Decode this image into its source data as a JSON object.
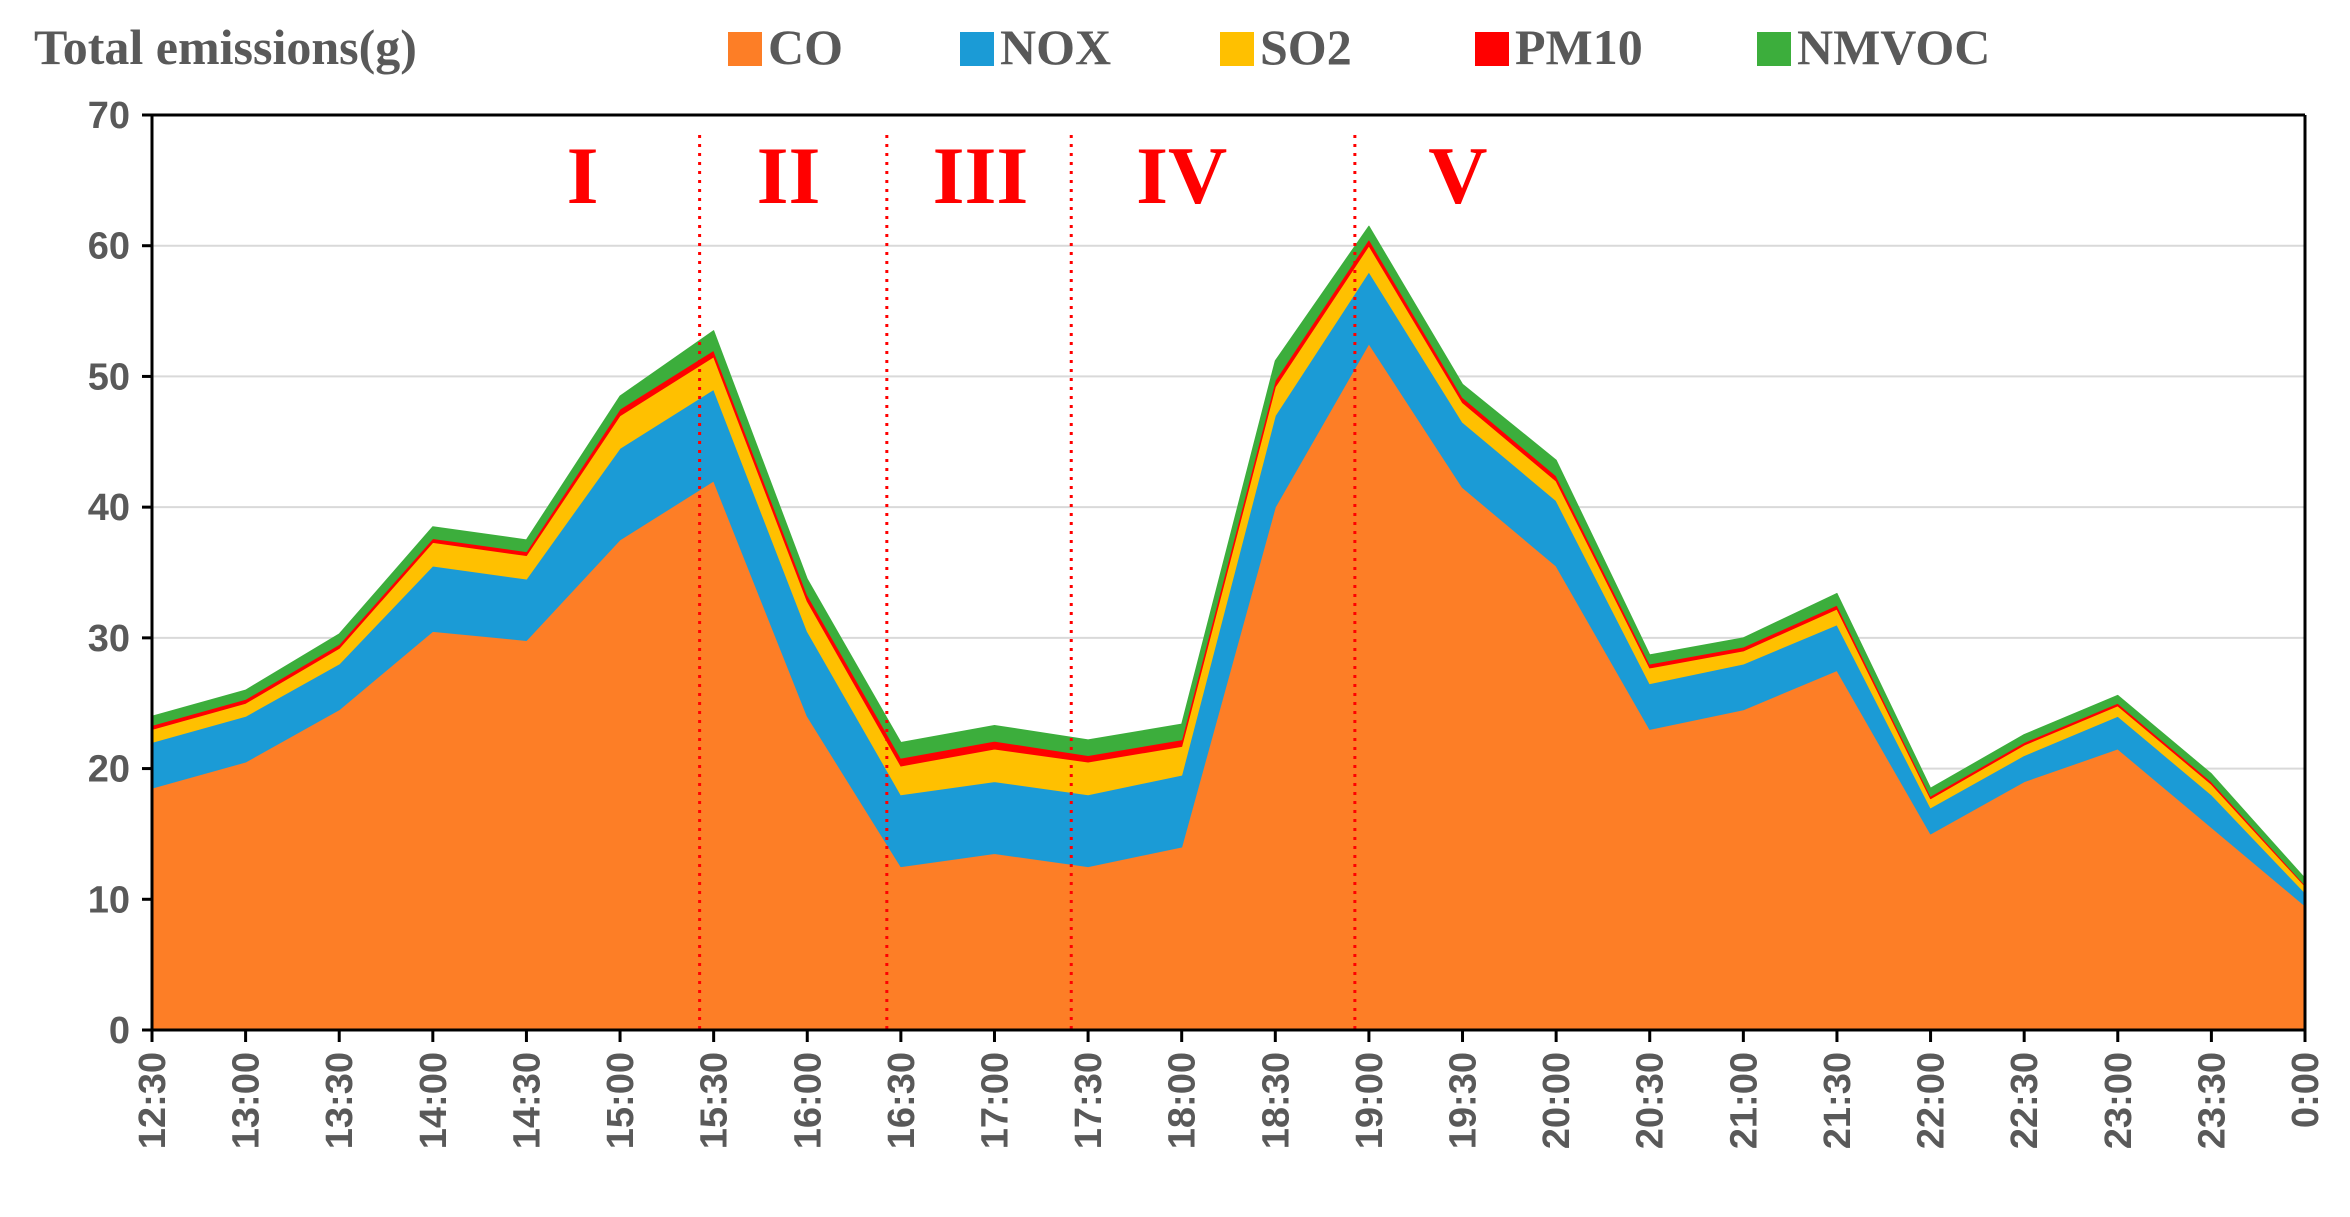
{
  "chart_data": {
    "type": "area",
    "stacked": true,
    "title": "Total emissions(g)",
    "ylim": [
      0,
      70
    ],
    "yticks": [
      0,
      10,
      20,
      30,
      40,
      50,
      60,
      70
    ],
    "grid": true,
    "categories": [
      "12:30",
      "13:00",
      "13:30",
      "14:00",
      "14:30",
      "15:00",
      "15:30",
      "16:00",
      "16:30",
      "17:00",
      "17:30",
      "18:00",
      "18:30",
      "19:00",
      "19:30",
      "20:00",
      "20:30",
      "21:00",
      "21:30",
      "22:00",
      "22:30",
      "23:00",
      "23:30",
      "0:00"
    ],
    "series": [
      {
        "name": "CO",
        "color": "#fd7e26",
        "values": [
          18.5,
          20.5,
          24.5,
          30.5,
          29.8,
          37.5,
          42.0,
          24.0,
          12.5,
          13.5,
          12.5,
          14.0,
          40.0,
          52.5,
          41.5,
          35.5,
          23.0,
          24.5,
          27.5,
          15.0,
          19.0,
          21.5,
          15.5,
          9.5
        ]
      },
      {
        "name": "NOX",
        "color": "#1b9bd6",
        "values": [
          3.5,
          3.5,
          3.5,
          5.0,
          4.7,
          7.0,
          7.0,
          6.5,
          5.5,
          5.5,
          5.5,
          5.5,
          7.0,
          5.5,
          5.0,
          5.0,
          3.5,
          3.5,
          3.5,
          2.0,
          2.0,
          2.5,
          2.5,
          1.0
        ]
      },
      {
        "name": "SO2",
        "color": "#ffc000",
        "values": [
          1.0,
          1.0,
          1.2,
          1.8,
          1.8,
          2.5,
          2.5,
          2.3,
          2.2,
          2.5,
          2.5,
          2.2,
          2.2,
          2.0,
          1.5,
          1.5,
          1.2,
          1.0,
          1.2,
          0.7,
          0.8,
          0.8,
          0.8,
          0.5
        ]
      },
      {
        "name": "PM10",
        "color": "#ff0000",
        "values": [
          0.3,
          0.3,
          0.3,
          0.3,
          0.3,
          0.5,
          0.5,
          0.5,
          0.6,
          0.6,
          0.5,
          0.5,
          0.5,
          0.5,
          0.4,
          0.4,
          0.3,
          0.3,
          0.3,
          0.2,
          0.2,
          0.2,
          0.2,
          0.1
        ]
      },
      {
        "name": "NMVOC",
        "color": "#3cae3c",
        "values": [
          0.7,
          0.7,
          0.8,
          0.9,
          0.9,
          1.0,
          1.5,
          1.2,
          1.2,
          1.2,
          1.2,
          1.2,
          1.5,
          1.0,
          1.0,
          1.2,
          0.7,
          0.7,
          0.9,
          0.6,
          0.6,
          0.6,
          0.6,
          0.5
        ]
      }
    ],
    "periods": [
      {
        "label": "I",
        "start": 0,
        "end": 5.85
      },
      {
        "label": "II",
        "start": 5.85,
        "end": 7.85
      },
      {
        "label": "III",
        "start": 7.85,
        "end": 9.82
      },
      {
        "label": "IV",
        "start": 9.82,
        "end": 12.85
      },
      {
        "label": "V",
        "start": 12.85,
        "end": 23
      }
    ],
    "period_divider_color": "#ff0000"
  }
}
